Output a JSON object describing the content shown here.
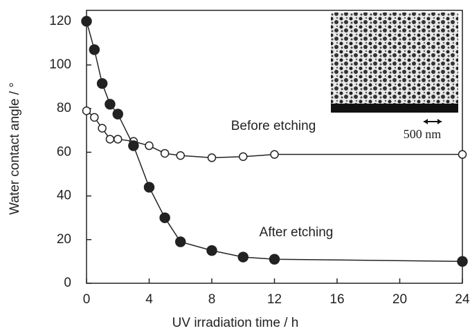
{
  "chart_data": {
    "type": "line",
    "x_label": "UV irradiation time / h",
    "y_label": "Water contact angle / °",
    "inset_label": "500 nm",
    "xlim": [
      0,
      24
    ],
    "xticks": [
      0,
      4,
      8,
      12,
      16,
      20,
      24
    ],
    "ylim": [
      0,
      125
    ],
    "yticks": [
      0,
      20,
      40,
      60,
      80,
      100,
      120
    ],
    "series": [
      {
        "name": "Before etching",
        "color": "#222222",
        "marker": "open",
        "x": [
          0,
          0.5,
          1,
          1.5,
          2,
          3,
          4,
          5,
          6,
          8,
          10,
          12,
          24
        ],
        "values": [
          79,
          76,
          71,
          66,
          66,
          65,
          63,
          59.5,
          58.5,
          57.5,
          58,
          59,
          59
        ]
      },
      {
        "name": "After etching",
        "color": "#222222",
        "marker": "filled",
        "x": [
          0,
          0.5,
          1,
          1.5,
          2,
          3,
          4,
          5,
          6,
          8,
          10,
          12,
          24
        ],
        "values": [
          120,
          107,
          91.5,
          82,
          77.5,
          63,
          44,
          30,
          19,
          15,
          12,
          11,
          10
        ]
      }
    ]
  }
}
